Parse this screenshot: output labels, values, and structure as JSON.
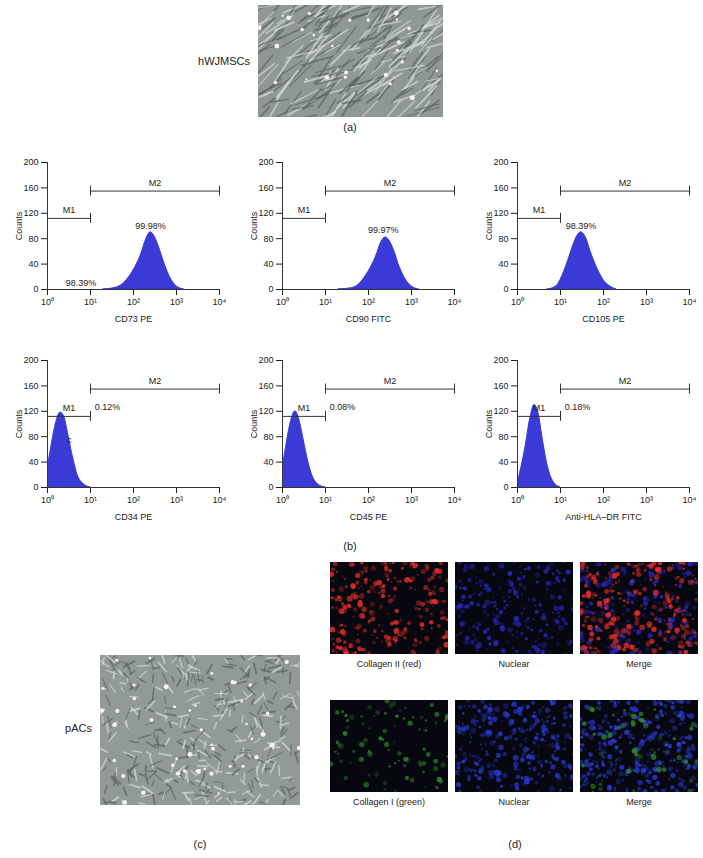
{
  "panels": {
    "a": {
      "label": "(a)",
      "image_label": "hWJMSCs"
    },
    "b": {
      "label": "(b)"
    },
    "c": {
      "label": "(c)",
      "image_label": "pACs"
    },
    "d": {
      "label": "(d)",
      "images": [
        [
          "Collagen II (red)",
          "Nuclear",
          "Merge"
        ],
        [
          "Collagen I (green)",
          "Nuclear",
          "Merge"
        ]
      ]
    }
  },
  "chart_data": [
    {
      "type": "area",
      "x_label": "CD73 PE",
      "y_label": "Counts",
      "color": "#3a3ad6",
      "log": "x",
      "x": [
        20,
        40,
        60,
        80,
        100,
        150,
        200,
        250,
        300,
        400,
        500,
        700,
        1000,
        1500
      ],
      "values": [
        0,
        3,
        10,
        20,
        30,
        55,
        80,
        90,
        85,
        65,
        45,
        20,
        5,
        0
      ],
      "xlim": [
        1,
        10000
      ],
      "ylim": [
        0,
        200
      ],
      "xticks": [
        {
          "value": 1,
          "label": "10⁰"
        },
        {
          "value": 10,
          "label": "10¹"
        },
        {
          "value": 100,
          "label": "10²"
        },
        {
          "value": 1000,
          "label": "10³"
        },
        {
          "value": 10000,
          "label": "10⁴"
        }
      ],
      "yticks": [
        0,
        40,
        80,
        120,
        160,
        200
      ],
      "gates": [
        {
          "name": "M1",
          "range": [
            1,
            10
          ],
          "y": 112
        },
        {
          "name": "M2",
          "range": [
            10,
            10000
          ],
          "y": 155
        }
      ],
      "annotations": [
        {
          "text": "99.98%",
          "x": 250,
          "y": 100
        },
        {
          "text": "98.39%",
          "x": 6,
          "y": 10
        }
      ]
    },
    {
      "type": "area",
      "x_label": "CD90 FITC",
      "y_label": "Counts",
      "color": "#3a3ad6",
      "log": "x",
      "x": [
        20,
        40,
        60,
        80,
        100,
        150,
        200,
        250,
        300,
        400,
        500,
        700,
        1000,
        1500
      ],
      "values": [
        0,
        2,
        8,
        18,
        28,
        52,
        75,
        82,
        78,
        60,
        40,
        18,
        5,
        0
      ],
      "xlim": [
        1,
        10000
      ],
      "ylim": [
        0,
        200
      ],
      "xticks": [
        {
          "value": 1,
          "label": "10⁰"
        },
        {
          "value": 10,
          "label": "10¹"
        },
        {
          "value": 100,
          "label": "10²"
        },
        {
          "value": 1000,
          "label": "10³"
        },
        {
          "value": 10000,
          "label": "10⁴"
        }
      ],
      "yticks": [
        0,
        40,
        80,
        120,
        160,
        200
      ],
      "gates": [
        {
          "name": "M1",
          "range": [
            1,
            10
          ],
          "y": 112
        },
        {
          "name": "M2",
          "range": [
            10,
            10000
          ],
          "y": 155
        }
      ],
      "annotations": [
        {
          "text": "99.97%",
          "x": 220,
          "y": 93
        }
      ]
    },
    {
      "type": "area",
      "x_label": "CD105 PE",
      "y_label": "Counts",
      "color": "#3a3ad6",
      "log": "x",
      "x": [
        5,
        8,
        10,
        15,
        20,
        25,
        30,
        40,
        50,
        70,
        100,
        150,
        200
      ],
      "values": [
        0,
        5,
        15,
        45,
        70,
        85,
        90,
        80,
        60,
        35,
        15,
        4,
        0
      ],
      "xlim": [
        1,
        10000
      ],
      "ylim": [
        0,
        200
      ],
      "xticks": [
        {
          "value": 1,
          "label": "10⁰"
        },
        {
          "value": 10,
          "label": "10¹"
        },
        {
          "value": 100,
          "label": "10²"
        },
        {
          "value": 1000,
          "label": "10³"
        },
        {
          "value": 10000,
          "label": "10⁴"
        }
      ],
      "yticks": [
        0,
        40,
        80,
        120,
        160,
        200
      ],
      "gates": [
        {
          "name": "M1",
          "range": [
            1,
            10
          ],
          "y": 112
        },
        {
          "name": "M2",
          "range": [
            10,
            10000
          ],
          "y": 155
        }
      ],
      "annotations": [
        {
          "text": "98.39%",
          "x": 30,
          "y": 100
        }
      ]
    },
    {
      "type": "area",
      "x_label": "CD34 PE",
      "y_label": "Counts",
      "color": "#3a3ad6",
      "log": "x",
      "x": [
        1,
        1.2,
        1.5,
        2,
        2.5,
        3,
        4,
        5,
        7,
        10
      ],
      "values": [
        30,
        60,
        95,
        118,
        110,
        85,
        45,
        20,
        5,
        0
      ],
      "xlim": [
        1,
        10000
      ],
      "ylim": [
        0,
        200
      ],
      "xticks": [
        {
          "value": 1,
          "label": "10⁰"
        },
        {
          "value": 10,
          "label": "10¹"
        },
        {
          "value": 100,
          "label": "10²"
        },
        {
          "value": 1000,
          "label": "10³"
        },
        {
          "value": 10000,
          "label": "10⁴"
        }
      ],
      "yticks": [
        0,
        40,
        80,
        120,
        160,
        200
      ],
      "gates": [
        {
          "name": "M1",
          "range": [
            1,
            10
          ],
          "y": 112
        },
        {
          "name": "M2",
          "range": [
            10,
            10000
          ],
          "y": 155
        }
      ],
      "annotations": [
        {
          "text": "0.12%",
          "x": 25,
          "y": 127
        },
        {
          "text": "c",
          "x": 3.2,
          "y": 75
        }
      ]
    },
    {
      "type": "area",
      "x_label": "CD45 PE",
      "y_label": "Counts",
      "color": "#3a3ad6",
      "log": "x",
      "x": [
        1,
        1.2,
        1.5,
        2,
        2.5,
        3,
        4,
        5,
        7,
        10
      ],
      "values": [
        30,
        62,
        98,
        120,
        105,
        80,
        40,
        18,
        4,
        0
      ],
      "xlim": [
        1,
        10000
      ],
      "ylim": [
        0,
        200
      ],
      "xticks": [
        {
          "value": 1,
          "label": "10⁰"
        },
        {
          "value": 10,
          "label": "10¹"
        },
        {
          "value": 100,
          "label": "10²"
        },
        {
          "value": 1000,
          "label": "10³"
        },
        {
          "value": 10000,
          "label": "10⁴"
        }
      ],
      "yticks": [
        0,
        40,
        80,
        120,
        160,
        200
      ],
      "gates": [
        {
          "name": "M1",
          "range": [
            1,
            10
          ],
          "y": 112
        },
        {
          "name": "M2",
          "range": [
            10,
            10000
          ],
          "y": 155
        }
      ],
      "annotations": [
        {
          "text": "0.08%",
          "x": 25,
          "y": 127
        }
      ]
    },
    {
      "type": "area",
      "x_label": "Anti-HLA–DR FITC",
      "y_label": "Counts",
      "color": "#3a3ad6",
      "log": "x",
      "x": [
        1,
        1.5,
        2,
        2.5,
        3,
        4,
        5,
        7,
        10
      ],
      "values": [
        5,
        60,
        110,
        130,
        120,
        70,
        35,
        8,
        0
      ],
      "xlim": [
        1,
        10000
      ],
      "ylim": [
        0,
        200
      ],
      "xticks": [
        {
          "value": 1,
          "label": "10⁰"
        },
        {
          "value": 10,
          "label": "10¹"
        },
        {
          "value": 100,
          "label": "10²"
        },
        {
          "value": 1000,
          "label": "10³"
        },
        {
          "value": 10000,
          "label": "10⁴"
        }
      ],
      "yticks": [
        0,
        40,
        80,
        120,
        160,
        200
      ],
      "gates": [
        {
          "name": "M1",
          "range": [
            1,
            10
          ],
          "y": 112
        },
        {
          "name": "M2",
          "range": [
            10,
            10000
          ],
          "y": 155
        }
      ],
      "annotations": [
        {
          "text": "0.18%",
          "x": 25,
          "y": 127
        }
      ]
    }
  ]
}
